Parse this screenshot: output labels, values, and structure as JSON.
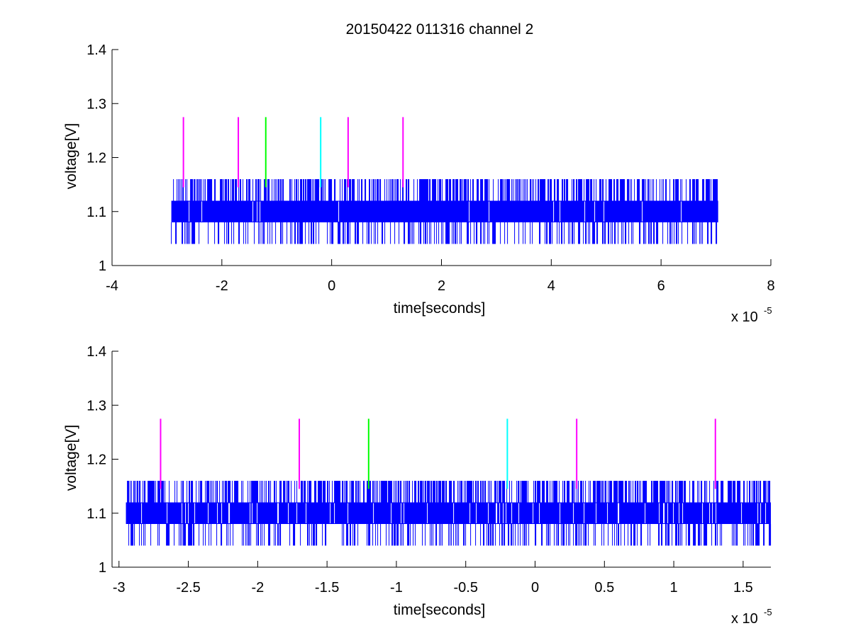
{
  "figure": {
    "title": "20150422 011316 channel 2"
  },
  "chart_data": [
    {
      "type": "line",
      "title": "20150422 011316 channel 2",
      "xlabel": "time[seconds]",
      "ylabel": "voltage[V]",
      "x_exponent_label": "x 10",
      "x_exponent": "-5",
      "xlim": [
        -4e-05,
        8e-05
      ],
      "ylim": [
        1,
        1.4
      ],
      "xticks": [
        -4,
        -2,
        0,
        2,
        4,
        6,
        8
      ],
      "xtick_labels": [
        "-4",
        "-2",
        "0",
        "2",
        "4",
        "6",
        "8"
      ],
      "yticks": [
        1,
        1.1,
        1.2,
        1.3,
        1.4
      ],
      "ytick_labels": [
        "1",
        "1.1",
        "1.2",
        "1.3",
        "1.4"
      ],
      "grid": false,
      "series": [
        {
          "color": "#0000ff",
          "kind": "digital-noise-signal",
          "x_range": [
            -2.92e-05,
            7.04e-05
          ],
          "baseline_levels": [
            1.08,
            1.12
          ],
          "spike_high": 1.16,
          "spike_low": 1.04
        }
      ],
      "markers": [
        {
          "x": -2.7e-05,
          "y_min": 1.145,
          "y_max": 1.275,
          "color": "#ff00ff"
        },
        {
          "x": -1.7e-05,
          "y_min": 1.145,
          "y_max": 1.275,
          "color": "#ff00ff"
        },
        {
          "x": -1.2e-05,
          "y_min": 1.145,
          "y_max": 1.275,
          "color": "#00ff00"
        },
        {
          "x": -2e-06,
          "y_min": 1.145,
          "y_max": 1.275,
          "color": "#00ffff"
        },
        {
          "x": 3e-06,
          "y_min": 1.145,
          "y_max": 1.275,
          "color": "#ff00ff"
        },
        {
          "x": 1.3e-05,
          "y_min": 1.145,
          "y_max": 1.275,
          "color": "#ff00ff"
        }
      ]
    },
    {
      "type": "line",
      "title": "",
      "xlabel": "time[seconds]",
      "ylabel": "voltage[V]",
      "x_exponent_label": "x 10",
      "x_exponent": "-5",
      "xlim": [
        -3.05e-05,
        1.7e-05
      ],
      "ylim": [
        1,
        1.4
      ],
      "xticks": [
        -3,
        -2.5,
        -2,
        -1.5,
        -1,
        -0.5,
        0,
        0.5,
        1,
        1.5
      ],
      "xtick_labels": [
        "-3",
        "-2.5",
        "-2",
        "-1.5",
        "-1",
        "-0.5",
        "0",
        "0.5",
        "1",
        "1.5"
      ],
      "yticks": [
        1,
        1.1,
        1.2,
        1.3,
        1.4
      ],
      "ytick_labels": [
        "1",
        "1.1",
        "1.2",
        "1.3",
        "1.4"
      ],
      "grid": false,
      "series": [
        {
          "color": "#0000ff",
          "kind": "digital-noise-signal",
          "x_range": [
            -2.95e-05,
            1.7e-05
          ],
          "baseline_levels": [
            1.08,
            1.12
          ],
          "spike_high": 1.16,
          "spike_low": 1.04
        }
      ],
      "markers": [
        {
          "x": -2.7e-05,
          "y_min": 1.145,
          "y_max": 1.275,
          "color": "#ff00ff"
        },
        {
          "x": -1.7e-05,
          "y_min": 1.145,
          "y_max": 1.275,
          "color": "#ff00ff"
        },
        {
          "x": -1.2e-05,
          "y_min": 1.145,
          "y_max": 1.275,
          "color": "#00ff00"
        },
        {
          "x": -2e-06,
          "y_min": 1.145,
          "y_max": 1.275,
          "color": "#00ffff"
        },
        {
          "x": 3e-06,
          "y_min": 1.145,
          "y_max": 1.275,
          "color": "#ff00ff"
        },
        {
          "x": 1.3e-05,
          "y_min": 1.145,
          "y_max": 1.275,
          "color": "#ff00ff"
        }
      ]
    }
  ]
}
